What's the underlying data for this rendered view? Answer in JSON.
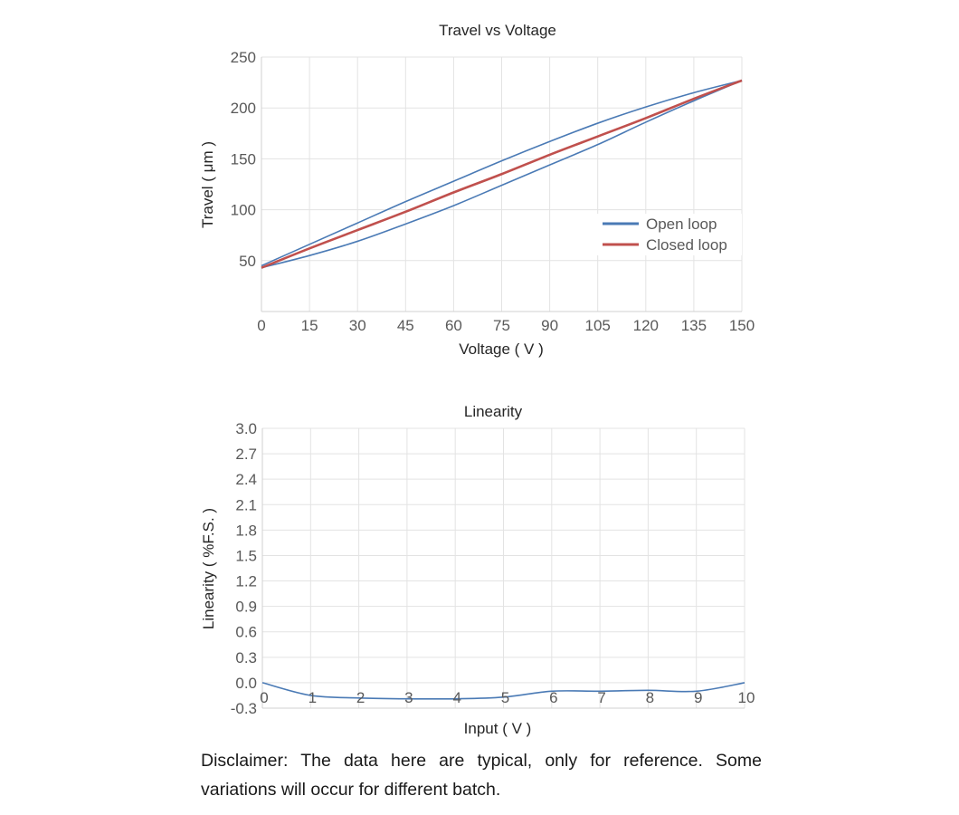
{
  "chart_data": [
    {
      "type": "line",
      "title": "Travel vs Voltage",
      "xlabel": "Voltage ( V )",
      "ylabel": "Travel ( μm )",
      "xlim": [
        0,
        150
      ],
      "ylim": [
        0,
        250
      ],
      "x_ticks": [
        0,
        15,
        30,
        45,
        60,
        75,
        90,
        105,
        120,
        135,
        150
      ],
      "y_ticks": [
        50,
        100,
        150,
        200,
        250
      ],
      "grid": true,
      "legend_position": "right-middle",
      "legend": [
        "Open loop",
        "Closed loop"
      ],
      "x": [
        0,
        15,
        30,
        45,
        60,
        75,
        90,
        105,
        120,
        135,
        150
      ],
      "series": [
        {
          "name": "Open loop",
          "branch": "rising",
          "color": "#4a7ab5",
          "values": [
            43,
            55,
            69,
            86,
            104,
            124,
            144,
            164,
            186,
            207,
            227
          ]
        },
        {
          "name": "Open loop",
          "branch": "falling",
          "color": "#4a7ab5",
          "values": [
            45,
            66,
            87,
            108,
            128,
            148,
            167,
            185,
            201,
            215,
            227
          ]
        },
        {
          "name": "Closed loop",
          "color": "#c0504d",
          "values": [
            43,
            62,
            80,
            98,
            117,
            135,
            154,
            172,
            190,
            209,
            227
          ]
        }
      ]
    },
    {
      "type": "line",
      "title": "Linearity",
      "xlabel": "Input ( V )",
      "ylabel": "Linearity ( %F.S. )",
      "xlim": [
        0,
        10
      ],
      "ylim": [
        -0.3,
        3.0
      ],
      "x_ticks": [
        0,
        1,
        2,
        3,
        4,
        5,
        6,
        7,
        8,
        9,
        10
      ],
      "y_ticks": [
        "-0.3",
        "0.0",
        "0.3",
        "0.6",
        "0.9",
        "1.2",
        "1.5",
        "1.8",
        "2.1",
        "2.4",
        "2.7",
        "3.0"
      ],
      "grid": true,
      "x": [
        0,
        1,
        2,
        3,
        4,
        5,
        6,
        7,
        8,
        9,
        10
      ],
      "series": [
        {
          "name": "Linearity",
          "color": "#4a7ab5",
          "values": [
            0.0,
            -0.15,
            -0.18,
            -0.19,
            -0.19,
            -0.17,
            -0.1,
            -0.1,
            -0.09,
            -0.1,
            0.0
          ]
        }
      ]
    }
  ],
  "disclaimer": "Disclaimer: The data here are typical, only for reference. Some variations will occur for different batch."
}
